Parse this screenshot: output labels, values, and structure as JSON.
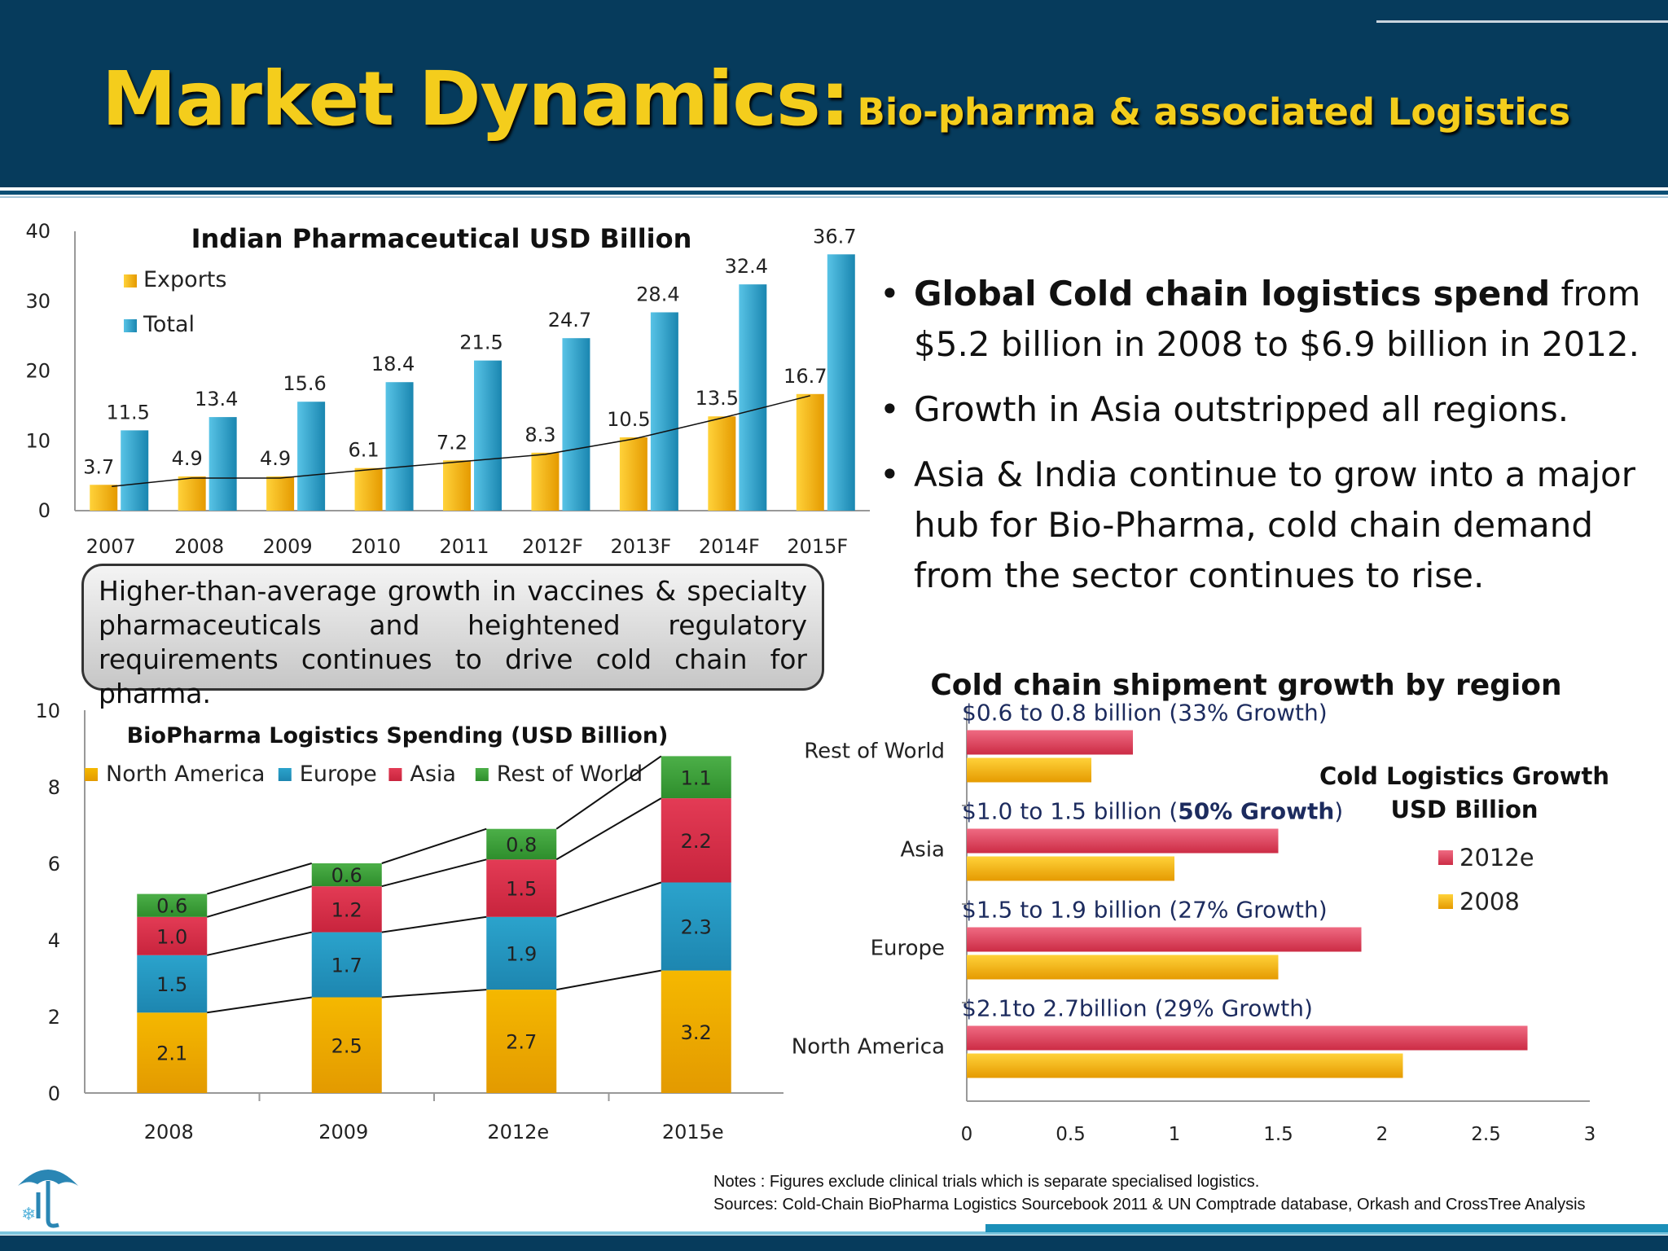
{
  "header": {
    "title_main": "Market Dynamics:",
    "title_sub": "Bio-pharma & associated Logistics"
  },
  "bullets": [
    {
      "bold": "Global Cold chain logistics spend",
      "text": " from $5.2 billion in 2008 to $6.9 billion in 2012."
    },
    {
      "bold": "",
      "text": "Growth in Asia outstripped all regions."
    },
    {
      "bold": "",
      "text": "Asia & India continue to  grow into a major hub for Bio-Pharma, cold chain demand from the sector continues to rise."
    }
  ],
  "callout": {
    "text": "Higher-than-average growth in vaccines & specialty pharmaceuticals and heightened regulatory requirements continues to drive cold chain for pharma."
  },
  "notes": {
    "line1": "Notes : Figures exclude clinical trials which is separate specialised logistics.",
    "line2": "Sources: Cold-Chain BioPharma Logistics Sourcebook 2011 & UN Comptrade database, Orkash and CrossTree Analysis"
  },
  "colors": {
    "banner": "#063b5c",
    "title": "#f4cd1c",
    "exports": "#f5b800",
    "total": "#2ba3cc",
    "north_america": "#f5b800",
    "europe": "#2ba3cc",
    "asia": "#e33b55",
    "rest_of_world": "#4caf48",
    "annotation_text": "#1c2b5e"
  },
  "logo_icon": "umbrella-snowflake-logo-icon",
  "chart_data": [
    {
      "id": "indian-pharma",
      "type": "bar",
      "title": "Indian Pharmaceutical USD Billion",
      "categories": [
        "2007",
        "2008",
        "2009",
        "2010",
        "2011",
        "2012F",
        "2013F",
        "2014F",
        "2015F"
      ],
      "series": [
        {
          "name": "Exports",
          "values": [
            3.7,
            4.9,
            4.9,
            6.1,
            7.2,
            8.3,
            10.5,
            13.5,
            16.7
          ],
          "labels": [
            "3.7",
            "4.9",
            "4.9",
            "6.1",
            "7.2",
            "8.3",
            "10.5",
            "13.5",
            "16.7"
          ]
        },
        {
          "name": "Total",
          "values": [
            11.5,
            13.4,
            15.6,
            18.4,
            21.5,
            24.7,
            28.4,
            32.4,
            36.7
          ],
          "labels": [
            "11.5",
            "13.4",
            "15.6",
            "18.4",
            "21.5",
            "24.7",
            "28.4",
            "32.4",
            "36.7"
          ]
        }
      ],
      "trendline": "Exports",
      "ylim": [
        0,
        40
      ],
      "yticks": [
        "0",
        "10",
        "20",
        "30",
        "40"
      ],
      "legend": "top-left"
    },
    {
      "id": "biopharma-logistics",
      "type": "bar",
      "stacked": true,
      "title": "BioPharma Logistics Spending (USD Billion)",
      "categories": [
        "2008",
        "2009",
        "2012e",
        "2015e"
      ],
      "series": [
        {
          "name": "North America",
          "values": [
            2.1,
            2.5,
            2.7,
            3.2
          ],
          "labels": [
            "2.1",
            "2.5",
            "2.7",
            "3.2"
          ]
        },
        {
          "name": "Europe",
          "values": [
            1.5,
            1.7,
            1.9,
            2.3
          ],
          "labels": [
            "1.5",
            "1.7",
            "1.9",
            "2.3"
          ]
        },
        {
          "name": "Asia",
          "values": [
            1.0,
            1.2,
            1.5,
            2.2
          ],
          "labels": [
            "1.0",
            "1.2",
            "1.5",
            "2.2"
          ]
        },
        {
          "name": "Rest of World",
          "values": [
            0.6,
            0.6,
            0.8,
            1.1
          ],
          "labels": [
            "0.6",
            "0.6",
            "0.8",
            "1.1"
          ]
        }
      ],
      "connector_lines": true,
      "ylim": [
        0,
        10
      ],
      "yticks": [
        "0",
        "2",
        "4",
        "6",
        "8",
        "10"
      ],
      "legend": "top"
    },
    {
      "id": "cold-chain-region",
      "type": "bar",
      "orientation": "horizontal",
      "title": "Cold chain shipment growth by region",
      "categories": [
        "North America",
        "Europe",
        "Asia",
        "Rest of World"
      ],
      "series": [
        {
          "name": "2012e",
          "values": [
            2.7,
            1.9,
            1.5,
            0.8
          ]
        },
        {
          "name": "2008",
          "values": [
            2.1,
            1.5,
            1.0,
            0.6
          ]
        }
      ],
      "annotations": [
        {
          "category": "North America",
          "text": "$2.1to 2.7billion (29% Growth)"
        },
        {
          "category": "Europe",
          "text": "$1.5 to 1.9 billion (27% Growth)"
        },
        {
          "category": "Asia",
          "text": "$1.0 to 1.5 billion (",
          "bold": "50% Growth",
          "after": ")"
        },
        {
          "category": "Rest of World",
          "text": "$0.6 to 0.8 billion (33% Growth)"
        }
      ],
      "legend_title": [
        "Cold Logistics Growth",
        "USD Billion"
      ],
      "xlim": [
        0,
        3
      ],
      "xticks": [
        "0",
        "0.5",
        "1",
        "1.5",
        "2",
        "2.5",
        "3"
      ],
      "legend": "right"
    }
  ]
}
